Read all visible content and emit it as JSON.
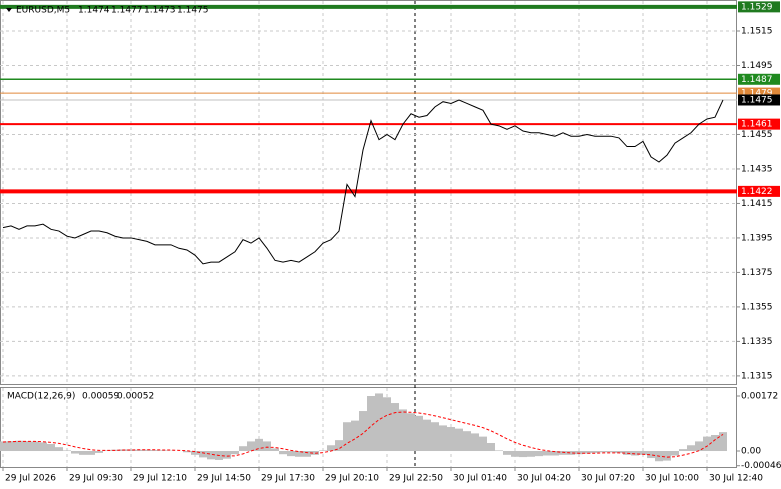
{
  "chart_data": [
    {
      "type": "line",
      "symbol": "EURUSD,M5",
      "ohlc": [
        1.1474,
        1.1477,
        1.1473,
        1.1475
      ],
      "color": "#000000",
      "categories": [
        "29 Jul 2026",
        null,
        null,
        null,
        null,
        null,
        null,
        null,
        "29 Jul 09:30",
        null,
        null,
        null,
        null,
        null,
        null,
        null,
        "29 Jul 12:10",
        null,
        null,
        null,
        null,
        null,
        null,
        null,
        "29 Jul 14:50",
        null,
        null,
        null,
        null,
        null,
        null,
        null,
        "29 Jul 17:30",
        null,
        null,
        null,
        null,
        null,
        null,
        null,
        "29 Jul 20:10",
        null,
        null,
        null,
        null,
        null,
        null,
        null,
        "29 Jul 22:50",
        null,
        null,
        null,
        null,
        null,
        null,
        null,
        "30 Jul 01:40",
        null,
        null,
        null,
        null,
        null,
        null,
        null,
        "30 Jul 04:20",
        null,
        null,
        null,
        null,
        null,
        null,
        null,
        "30 Jul 07:20",
        null,
        null,
        null,
        null,
        null,
        null,
        null,
        "30 Jul 10:00",
        null,
        null,
        null,
        null,
        null,
        null,
        null,
        "30 Jul 12:40",
        null,
        null
      ],
      "values": [
        1.1401,
        1.1402,
        1.14,
        1.1402,
        1.1402,
        1.1403,
        1.14,
        1.1399,
        1.1396,
        1.1395,
        1.1397,
        1.1399,
        1.1399,
        1.1398,
        1.1396,
        1.1395,
        1.1395,
        1.1394,
        1.1393,
        1.1391,
        1.1391,
        1.1391,
        1.1389,
        1.1388,
        1.1385,
        1.138,
        1.1381,
        1.1381,
        1.1384,
        1.1387,
        1.1394,
        1.1392,
        1.1395,
        1.1389,
        1.1382,
        1.1381,
        1.1382,
        1.1381,
        1.1384,
        1.1387,
        1.1392,
        1.1394,
        1.1399,
        1.1426,
        1.1419,
        1.1446,
        1.1463,
        1.1452,
        1.1455,
        1.1452,
        1.1461,
        1.1467,
        1.1465,
        1.1466,
        1.1471,
        1.1474,
        1.1473,
        1.1475,
        1.1473,
        1.1471,
        1.1469,
        1.1461,
        1.146,
        1.1458,
        1.146,
        1.1457,
        1.1456,
        1.1456,
        1.1455,
        1.1454,
        1.1456,
        1.1454,
        1.1454,
        1.1455,
        1.1454,
        1.1454,
        1.1454,
        1.1453,
        1.1448,
        1.1448,
        1.1451,
        1.1442,
        1.1439,
        1.1443,
        1.145,
        1.1453,
        1.1456,
        1.1461,
        1.1464,
        1.1465,
        1.1475
      ],
      "ylim": [
        1.13103,
        1.15324
      ],
      "yticks": [
        1.1515,
        1.1495,
        1.1455,
        1.1435,
        1.1415,
        1.1395,
        1.1375,
        1.1355,
        1.1335,
        1.1315
      ],
      "grid": true,
      "levels": [
        {
          "value": 1.1529,
          "color": "#1f7a1f",
          "width": 4
        },
        {
          "value": 1.1487,
          "color": "#1f8a1f",
          "width": 1.5
        },
        {
          "value": 1.1479,
          "color": "#e0893a",
          "width": 1
        },
        {
          "value": 1.1461,
          "color": "#ff0000",
          "width": 2
        },
        {
          "value": 1.1422,
          "color": "#ff0000",
          "width": 4
        }
      ],
      "last_price": 1.1475
    },
    {
      "type": "macd",
      "title": "MACD(12,26,9)",
      "series": [
        {
          "kind": "bar",
          "color": "#c0c0c0",
          "values": [
            0.0003,
            0.00031,
            0.00032,
            0.00031,
            0.0003,
            0.00027,
            0.00022,
            0.00012,
            2e-05,
            -8e-05,
            -0.00012,
            -0.00012,
            -6e-05,
            2e-05,
            4e-05,
            5e-05,
            5e-05,
            4e-05,
            4e-05,
            3e-05,
            2e-05,
            1e-05,
            0.0,
            -4e-05,
            -0.00012,
            -0.0002,
            -0.00026,
            -0.00028,
            -0.00024,
            -0.0001,
            0.00015,
            0.0003,
            0.00038,
            0.0003,
            8e-05,
            -0.0001,
            -0.00016,
            -0.00018,
            -0.00018,
            -0.00012,
            2e-05,
            0.00018,
            0.00034,
            0.0009,
            0.00095,
            0.00125,
            0.00172,
            0.0018,
            0.00168,
            0.0015,
            0.0013,
            0.00118,
            0.0011,
            0.00098,
            0.0009,
            0.0008,
            0.00075,
            0.0007,
            0.00062,
            0.00055,
            0.00045,
            0.00025,
            2e-05,
            -0.00012,
            -0.00018,
            -0.00019,
            -0.00018,
            -0.00016,
            -0.00014,
            -0.00014,
            -0.00012,
            -0.00012,
            -0.0001,
            -8e-05,
            -6e-05,
            -4e-05,
            -4e-05,
            -6e-05,
            -0.00012,
            -0.00014,
            -0.00012,
            -0.00022,
            -0.00032,
            -0.0003,
            -0.00014,
            6e-05,
            0.00018,
            0.0003,
            0.00045,
            0.0005,
            0.00059
          ]
        },
        {
          "kind": "line",
          "color": "#ff0000",
          "dash": true,
          "values": [
            0.00028,
            0.00029,
            0.0003,
            0.0003,
            0.0003,
            0.00029,
            0.00027,
            0.00024,
            0.00019,
            0.00013,
            8e-05,
            4e-05,
            2e-05,
            2e-05,
            2e-05,
            3e-05,
            3e-05,
            4e-05,
            4e-05,
            4e-05,
            3e-05,
            3e-05,
            2e-05,
            1e-05,
            -2e-05,
            -6e-05,
            -0.0001,
            -0.00014,
            -0.00016,
            -0.00015,
            -9e-05,
            0.0,
            8e-05,
            0.00012,
            0.00011,
            7e-05,
            2e-05,
            -2e-05,
            -5e-05,
            -7e-05,
            -5e-05,
            0.0,
            7e-05,
            0.00024,
            0.00038,
            0.00055,
            0.00078,
            0.00098,
            0.00112,
            0.0012,
            0.00122,
            0.00121,
            0.00119,
            0.00115,
            0.0011,
            0.00104,
            0.00098,
            0.00092,
            0.00086,
            0.0008,
            0.00073,
            0.00063,
            0.00051,
            0.00038,
            0.00027,
            0.00018,
            0.00011,
            5e-05,
            1e-05,
            -2e-05,
            -4e-05,
            -6e-05,
            -7e-05,
            -7e-05,
            -7e-05,
            -6e-05,
            -6e-05,
            -6e-05,
            -7e-05,
            -9e-05,
            -0.0001,
            -0.00012,
            -0.00016,
            -0.00019,
            -0.00018,
            -0.00013,
            -7e-05,
            1e-05,
            0.00015,
            0.00035,
            0.00052
          ]
        }
      ],
      "ylim": [
        -0.0005,
        0.00197
      ],
      "yticks": [
        0.00172,
        {
          "value": 0,
          "label": "0.00"
        },
        -0.00046
      ]
    }
  ]
}
